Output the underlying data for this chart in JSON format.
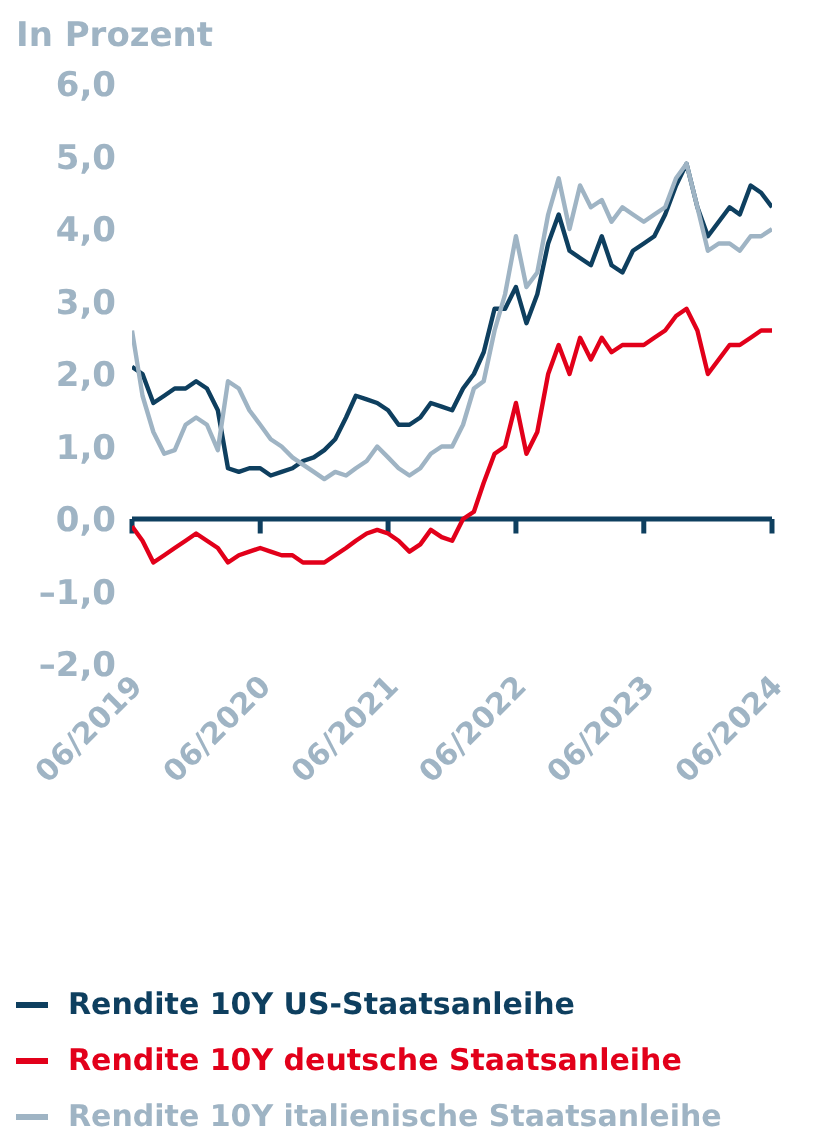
{
  "chart_data": {
    "type": "line",
    "ylabel": "In Prozent",
    "x": [
      "2019-06",
      "2019-07",
      "2019-08",
      "2019-09",
      "2019-10",
      "2019-11",
      "2019-12",
      "2020-01",
      "2020-02",
      "2020-03",
      "2020-04",
      "2020-05",
      "2020-06",
      "2020-07",
      "2020-08",
      "2020-09",
      "2020-10",
      "2020-11",
      "2020-12",
      "2021-01",
      "2021-02",
      "2021-03",
      "2021-04",
      "2021-05",
      "2021-06",
      "2021-07",
      "2021-08",
      "2021-09",
      "2021-10",
      "2021-11",
      "2021-12",
      "2022-01",
      "2022-02",
      "2022-03",
      "2022-04",
      "2022-05",
      "2022-06",
      "2022-07",
      "2022-08",
      "2022-09",
      "2022-10",
      "2022-11",
      "2022-12",
      "2023-01",
      "2023-02",
      "2023-03",
      "2023-04",
      "2023-05",
      "2023-06",
      "2023-07",
      "2023-08",
      "2023-09",
      "2023-10",
      "2023-11",
      "2023-12",
      "2024-01",
      "2024-02",
      "2024-03",
      "2024-04",
      "2024-05",
      "2024-06"
    ],
    "series": [
      {
        "name": "Rendite 10Y US-Staatsanleihe",
        "color": "#0e3f5f",
        "values": [
          2.1,
          2.0,
          1.6,
          1.7,
          1.8,
          1.8,
          1.9,
          1.8,
          1.5,
          0.7,
          0.65,
          0.7,
          0.7,
          0.6,
          0.65,
          0.7,
          0.8,
          0.85,
          0.95,
          1.1,
          1.4,
          1.7,
          1.65,
          1.6,
          1.5,
          1.3,
          1.3,
          1.4,
          1.6,
          1.55,
          1.5,
          1.8,
          2.0,
          2.3,
          2.9,
          2.9,
          3.2,
          2.7,
          3.1,
          3.8,
          4.2,
          3.7,
          3.6,
          3.5,
          3.9,
          3.5,
          3.4,
          3.7,
          3.8,
          3.9,
          4.2,
          4.6,
          4.9,
          4.3,
          3.9,
          4.1,
          4.3,
          4.2,
          4.6,
          4.5,
          4.3
        ]
      },
      {
        "name": "Rendite 10Y deutsche Staatsanleihe",
        "color": "#e2001a",
        "values": [
          -0.1,
          -0.3,
          -0.6,
          -0.5,
          -0.4,
          -0.3,
          -0.2,
          -0.3,
          -0.4,
          -0.6,
          -0.5,
          -0.45,
          -0.4,
          -0.45,
          -0.5,
          -0.5,
          -0.6,
          -0.6,
          -0.6,
          -0.5,
          -0.4,
          -0.3,
          -0.2,
          -0.15,
          -0.2,
          -0.3,
          -0.45,
          -0.35,
          -0.15,
          -0.25,
          -0.3,
          0.0,
          0.1,
          0.5,
          0.9,
          1.0,
          1.6,
          0.9,
          1.2,
          2.0,
          2.4,
          2.0,
          2.5,
          2.2,
          2.5,
          2.3,
          2.4,
          2.4,
          2.4,
          2.5,
          2.6,
          2.8,
          2.9,
          2.6,
          2.0,
          2.2,
          2.4,
          2.4,
          2.5,
          2.6,
          2.6
        ]
      },
      {
        "name": "Rendite 10Y italienische Staatsanleihe",
        "color": "#9fb4c4",
        "values": [
          2.6,
          1.7,
          1.2,
          0.9,
          0.95,
          1.3,
          1.4,
          1.3,
          0.95,
          1.9,
          1.8,
          1.5,
          1.3,
          1.1,
          1.0,
          0.85,
          0.75,
          0.65,
          0.55,
          0.65,
          0.6,
          0.7,
          0.8,
          1.0,
          0.85,
          0.7,
          0.6,
          0.7,
          0.9,
          1.0,
          1.0,
          1.3,
          1.8,
          1.9,
          2.6,
          3.1,
          3.9,
          3.2,
          3.4,
          4.2,
          4.7,
          4.0,
          4.6,
          4.3,
          4.4,
          4.1,
          4.3,
          4.2,
          4.1,
          4.2,
          4.3,
          4.7,
          4.9,
          4.3,
          3.7,
          3.8,
          3.8,
          3.7,
          3.9,
          3.9,
          4.0
        ]
      }
    ],
    "xlim": [
      "2019-06",
      "2024-06"
    ],
    "xticks": [
      {
        "value": "2019-06",
        "label": "06/2019"
      },
      {
        "value": "2020-06",
        "label": "06/2020"
      },
      {
        "value": "2021-06",
        "label": "06/2021"
      },
      {
        "value": "2022-06",
        "label": "06/2022"
      },
      {
        "value": "2023-06",
        "label": "06/2023"
      },
      {
        "value": "2024-06",
        "label": "06/2024"
      }
    ],
    "ylim": [
      -2,
      6
    ],
    "yticks": [
      {
        "value": -2,
        "label": "–2,0"
      },
      {
        "value": -1,
        "label": "–1,0"
      },
      {
        "value": 0,
        "label": "0,0"
      },
      {
        "value": 1,
        "label": "1,0"
      },
      {
        "value": 2,
        "label": "2,0"
      },
      {
        "value": 3,
        "label": "3,0"
      },
      {
        "value": 4,
        "label": "4,0"
      },
      {
        "value": 5,
        "label": "5,0"
      },
      {
        "value": 6,
        "label": "6,0"
      }
    ],
    "ref_lines": [
      {
        "axis": "y",
        "value": 0,
        "color": "#0e3f5f"
      }
    ],
    "grid": false,
    "legend": "bottom",
    "marker": "none",
    "line_style": "solid"
  }
}
